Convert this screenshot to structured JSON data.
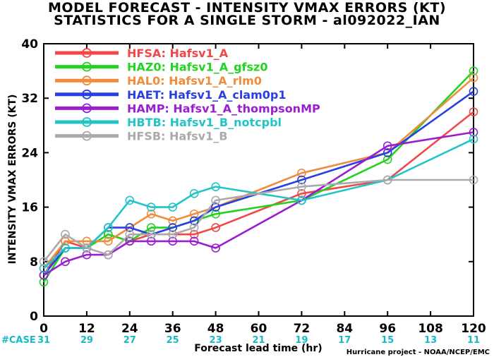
{
  "header": {
    "title_line1": "MODEL FORECAST - INTENSITY VMAX ERRORS (KT)",
    "title_line2": "STATISTICS FOR A SINGLE STORM - al092022_IAN"
  },
  "colors": {
    "HFSA": "#f04848",
    "HAZ0": "#22d322",
    "HAL0": "#f08c3c",
    "HAET": "#2a3fe0",
    "HAMP": "#9a1ecf",
    "HBTB": "#22c4c8",
    "HFSB": "#aaaaaa",
    "case": "#17b8c8"
  },
  "chart_data": {
    "type": "line",
    "xlabel": "Forecast lead time (hr)",
    "ylabel": "INTENSITY VMAX ERRORS (KT)",
    "xlim": [
      0,
      120
    ],
    "ylim": [
      0,
      40
    ],
    "x_ticks": [
      0,
      12,
      24,
      36,
      48,
      60,
      72,
      84,
      96,
      108,
      120
    ],
    "y_ticks": [
      0,
      8,
      16,
      24,
      32,
      40
    ],
    "legend_placement": "top-left",
    "grid": false,
    "series": [
      {
        "key": "HFSA",
        "code": "HFSA:",
        "label": "Hafsv1_A",
        "x": [
          0,
          6,
          12,
          18,
          24,
          30,
          36,
          42,
          48,
          72,
          96,
          120
        ],
        "y": [
          6,
          11,
          10,
          12,
          11,
          12,
          12,
          12,
          13,
          18,
          20,
          30
        ]
      },
      {
        "key": "HAZ0",
        "code": "HAZ0:",
        "label": "Hafsv1_A_gfsz0",
        "x": [
          0,
          6,
          12,
          18,
          24,
          30,
          36,
          42,
          48,
          72,
          96,
          120
        ],
        "y": [
          5,
          10,
          10,
          12,
          11,
          13,
          13,
          14,
          15,
          17,
          23,
          36
        ]
      },
      {
        "key": "HAL0",
        "code": "HAL0:",
        "label": "Hafsv1_A_rlm0",
        "x": [
          0,
          6,
          12,
          18,
          24,
          30,
          36,
          42,
          48,
          72,
          96,
          120
        ],
        "y": [
          7,
          11,
          11,
          11,
          13,
          15,
          14,
          15,
          16,
          21,
          24,
          35
        ]
      },
      {
        "key": "HAET",
        "code": "HAET:",
        "label": "Hafsv1_A_clam0p1",
        "x": [
          0,
          6,
          12,
          18,
          24,
          30,
          36,
          42,
          48,
          72,
          96,
          120
        ],
        "y": [
          6,
          10,
          10,
          13,
          13,
          12,
          13,
          14,
          16,
          20,
          24,
          33
        ]
      },
      {
        "key": "HAMP",
        "code": "HAMP:",
        "label": "Hafsv1_A_thompsonMP",
        "x": [
          0,
          6,
          12,
          18,
          24,
          30,
          36,
          42,
          48,
          72,
          96,
          120
        ],
        "y": [
          6,
          8,
          9,
          9,
          11,
          11,
          11,
          11,
          10,
          17,
          25,
          27
        ]
      },
      {
        "key": "HBTB",
        "code": "HBTB:",
        "label": "Hafsv1_B_notcpbl",
        "x": [
          0,
          6,
          12,
          18,
          24,
          30,
          36,
          42,
          48,
          72,
          96,
          120
        ],
        "y": [
          7,
          10,
          10,
          13,
          17,
          16,
          16,
          18,
          19,
          17,
          20,
          26
        ]
      },
      {
        "key": "HFSB",
        "code": "HFSB:",
        "label": "Hafsv1_B",
        "x": [
          0,
          6,
          12,
          18,
          24,
          30,
          36,
          42,
          48,
          72,
          96,
          120
        ],
        "y": [
          8,
          12,
          10,
          9,
          12,
          12,
          12,
          13,
          17,
          19,
          20,
          20
        ]
      }
    ],
    "cases": {
      "label": "#CASE",
      "x": [
        0,
        12,
        24,
        36,
        48,
        60,
        72,
        84,
        96,
        108,
        120
      ],
      "values": [
        31,
        29,
        27,
        25,
        23,
        21,
        19,
        17,
        15,
        13,
        11
      ]
    },
    "footer": "Hurricane project - NOAA/NCEP/EMC"
  }
}
